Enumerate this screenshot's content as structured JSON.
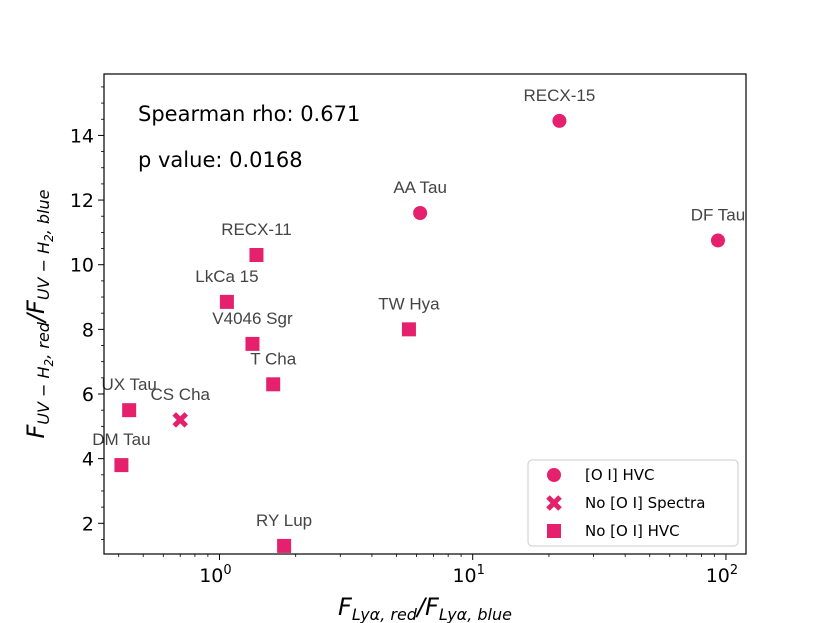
{
  "chart_data": {
    "type": "scatter",
    "xscale": "log",
    "xlim": [
      0.35,
      120
    ],
    "ylim": [
      1.05,
      15.9
    ],
    "x_ticks": [
      {
        "value": 1,
        "base": "10",
        "exp": "0"
      },
      {
        "value": 10,
        "base": "10",
        "exp": "1"
      },
      {
        "value": 100,
        "base": "10",
        "exp": "2"
      }
    ],
    "y_ticks": [
      2,
      4,
      6,
      8,
      10,
      12,
      14
    ],
    "xlabel": {
      "main": "F",
      "sub1": "Lyα, red",
      "sep": "/F",
      "sub2": "Lyα, blue"
    },
    "ylabel": {
      "main": "F",
      "sub1": "UV − H",
      "sub1b": "2",
      "sub1c": ", red",
      "sep": "/F",
      "sub2": "UV − H",
      "sub2b": "2",
      "sub2c": ", blue"
    },
    "stats": {
      "spearman": "Spearman rho: 0.671",
      "pvalue": "p value: 0.0168"
    },
    "color": "#e5206d",
    "series": [
      {
        "name": "[O I] HVC",
        "marker": "circle",
        "points": [
          {
            "label": "RECX-15",
            "x": 22,
            "y": 14.45
          },
          {
            "label": "AA Tau",
            "x": 6.2,
            "y": 11.6
          },
          {
            "label": "DF Tau",
            "x": 93,
            "y": 10.75
          }
        ]
      },
      {
        "name": "No [O I] Spectra",
        "marker": "x",
        "points": [
          {
            "label": "CS Cha",
            "x": 0.7,
            "y": 5.2
          }
        ]
      },
      {
        "name": "No [O I] HVC",
        "marker": "square",
        "points": [
          {
            "label": "RECX-11",
            "x": 1.4,
            "y": 10.3
          },
          {
            "label": "LkCa 15",
            "x": 1.07,
            "y": 8.85
          },
          {
            "label": "V4046 Sgr",
            "x": 1.35,
            "y": 7.55
          },
          {
            "label": "TW Hya",
            "x": 5.6,
            "y": 8.0
          },
          {
            "label": "T Cha",
            "x": 1.63,
            "y": 6.3
          },
          {
            "label": "UX Tau",
            "x": 0.44,
            "y": 5.5
          },
          {
            "label": "DM Tau",
            "x": 0.41,
            "y": 3.8
          },
          {
            "label": "RY Lup",
            "x": 1.8,
            "y": 1.3
          }
        ]
      }
    ],
    "legend": {
      "position": "lower-right",
      "entries": [
        "[O I] HVC",
        "No [O I] Spectra",
        "No [O I] HVC"
      ]
    }
  }
}
